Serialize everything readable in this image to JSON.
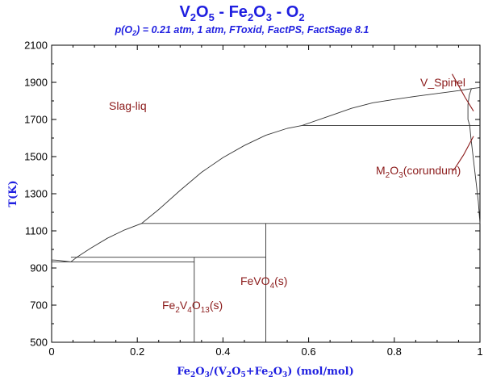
{
  "chart_data": {
    "type": "phase-diagram",
    "title_parts": {
      "pre1": "V",
      "sub1": "2",
      "mid1": "O",
      "sub2": "5",
      "mid2": " - Fe",
      "sub3": "2",
      "mid3": "O",
      "sub4": "3",
      "mid4": " - O",
      "sub5": "2"
    },
    "subtitle_parts": {
      "pre": "p(O",
      "sub": "2",
      "post": ") = 0.21 atm, 1 atm, FToxid, FactPS, FactSage 8.1"
    },
    "ylabel": "T(K)",
    "xlabel_parts": {
      "a": "Fe",
      "b": "2",
      "c": "O",
      "d": "3",
      "e": "/(V",
      "f": "2",
      "g": "O",
      "h": "5",
      "i": "+Fe",
      "j": "2",
      "k": "O",
      "l": "3",
      "m": ") (mol/mol)"
    },
    "xlim": [
      0,
      1
    ],
    "ylim": [
      500,
      2100
    ],
    "x_ticks": [
      "0",
      "0.2",
      "0.4",
      "0.6",
      "0.8",
      "1"
    ],
    "x_tick_values": [
      0,
      0.2,
      0.4,
      0.6,
      0.8,
      1
    ],
    "y_ticks": [
      "500",
      "700",
      "900",
      "1100",
      "1300",
      "1500",
      "1700",
      "1900",
      "2100"
    ],
    "y_tick_values": [
      500,
      700,
      900,
      1100,
      1300,
      1500,
      1700,
      1900,
      2100
    ],
    "regions": {
      "slag": "Slag-liq",
      "spinel": "V_Spinel",
      "corundum_parts": {
        "a": "M",
        "b": "2",
        "c": "O",
        "d": "3",
        "e": "(corundum)"
      },
      "fevo4_parts": {
        "a": "FeVO",
        "b": "4",
        "c": "(s)"
      },
      "fe2v4o13_parts": {
        "a": "Fe",
        "b": "2",
        "c": "V",
        "d": "4",
        "e": "O",
        "f": "13",
        "g": "(s)"
      }
    },
    "boundaries": [
      {
        "id": "liquidus-left",
        "points": [
          [
            0,
            943
          ],
          [
            0.01,
            942
          ],
          [
            0.02,
            940
          ],
          [
            0.03,
            937
          ],
          [
            0.045,
            933
          ]
        ]
      },
      {
        "id": "liquidus-main",
        "points": [
          [
            0.045,
            933
          ],
          [
            0.06,
            960
          ],
          [
            0.09,
            1005
          ],
          [
            0.13,
            1060
          ],
          [
            0.17,
            1105
          ],
          [
            0.21,
            1140
          ],
          [
            0.25,
            1215
          ],
          [
            0.3,
            1318
          ],
          [
            0.35,
            1415
          ],
          [
            0.4,
            1495
          ],
          [
            0.45,
            1560
          ],
          [
            0.5,
            1615
          ],
          [
            0.55,
            1652
          ],
          [
            0.585,
            1668
          ],
          [
            0.65,
            1720
          ],
          [
            0.7,
            1760
          ],
          [
            0.75,
            1790
          ],
          [
            0.8,
            1808
          ],
          [
            0.85,
            1825
          ],
          [
            0.9,
            1840
          ],
          [
            0.95,
            1855
          ],
          [
            0.98,
            1866
          ],
          [
            1.0,
            1872
          ]
        ]
      },
      {
        "id": "spinel-solvus",
        "points": [
          [
            0.98,
            1866
          ],
          [
            0.975,
            1830
          ],
          [
            0.972,
            1780
          ],
          [
            0.972,
            1700
          ],
          [
            0.976,
            1668
          ]
        ]
      },
      {
        "id": "corundum-solvus",
        "points": [
          [
            0.976,
            1668
          ],
          [
            0.979,
            1600
          ],
          [
            0.984,
            1500
          ],
          [
            0.99,
            1380
          ],
          [
            0.996,
            1260
          ],
          [
            1.0,
            1140
          ]
        ]
      },
      {
        "id": "peritectic-1668",
        "points": [
          [
            0.585,
            1668
          ],
          [
            1.0,
            1668
          ]
        ]
      },
      {
        "id": "peritectic-1140",
        "points": [
          [
            0.21,
            1140
          ],
          [
            1.0,
            1140
          ]
        ]
      },
      {
        "id": "fevo4-line",
        "points": [
          [
            0.5,
            500
          ],
          [
            0.5,
            1140
          ]
        ]
      },
      {
        "id": "eutectic-958",
        "points": [
          [
            0.045,
            958
          ],
          [
            0.5,
            958
          ]
        ]
      },
      {
        "id": "fe2v4o13-line",
        "points": [
          [
            0.333,
            500
          ],
          [
            0.333,
            958
          ]
        ]
      },
      {
        "id": "eutectic-933",
        "points": [
          [
            0,
            933
          ],
          [
            0.333,
            933
          ]
        ]
      }
    ],
    "leader_lines": [
      {
        "id": "spinel-leader",
        "points": [
          [
            0.935,
            1945
          ],
          [
            0.965,
            1820
          ],
          [
            0.985,
            1745
          ]
        ]
      },
      {
        "id": "corundum-leader",
        "points": [
          [
            0.938,
            1425
          ],
          [
            0.962,
            1510
          ],
          [
            0.985,
            1610
          ]
        ]
      }
    ]
  }
}
